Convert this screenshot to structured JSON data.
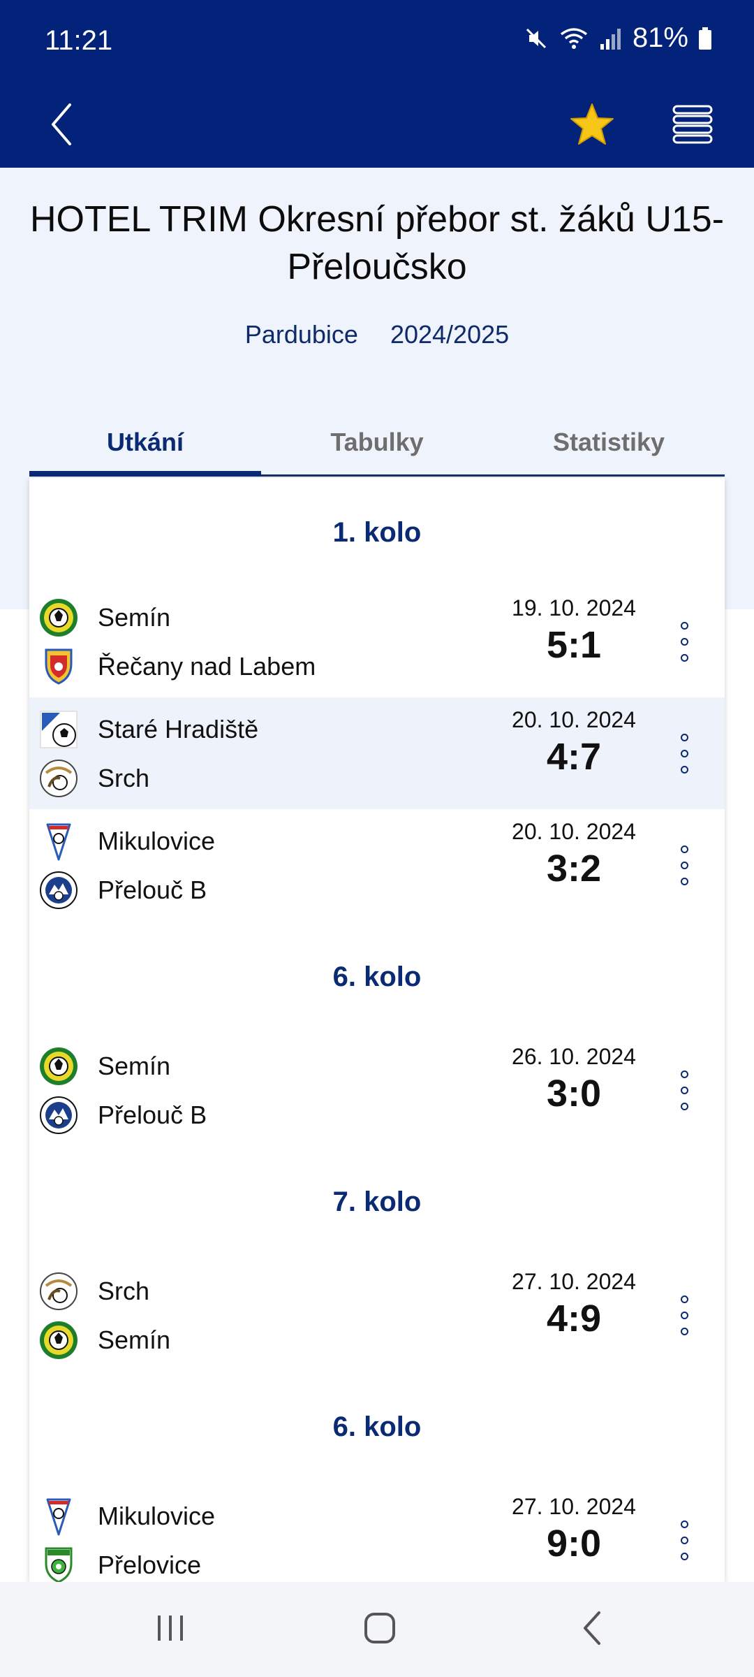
{
  "status_bar": {
    "time": "11:21",
    "battery": "81%",
    "icons": [
      "mute-icon",
      "wifi-icon",
      "signal-icon",
      "battery-icon"
    ]
  },
  "app_bar": {
    "icons": [
      "back-arrow-icon",
      "star-icon",
      "menu-icon"
    ],
    "star_color": "#f5c518"
  },
  "competition": {
    "title": "HOTEL TRIM Okresní přebor st. žáků U15-Přeloučsko",
    "region": "Pardubice",
    "season": "2024/2025"
  },
  "tabs": [
    {
      "label": "Utkání",
      "active": true
    },
    {
      "label": "Tabulky",
      "active": false
    },
    {
      "label": "Statistiky",
      "active": false
    }
  ],
  "rounds": [
    {
      "label": "1. kolo"
    },
    {
      "label": "6. kolo"
    },
    {
      "label": "7. kolo"
    },
    {
      "label": "6. kolo"
    }
  ],
  "matches": [
    {
      "home": "Semín",
      "away": "Řečany nad Labem",
      "date": "19. 10. 2024",
      "score": "5:1",
      "home_logo": "semin-logo-icon",
      "away_logo": "recany-logo-icon"
    },
    {
      "home": "Staré Hradiště",
      "away": "Srch",
      "date": "20. 10. 2024",
      "score": "4:7",
      "home_logo": "stare-hradiste-logo-icon",
      "away_logo": "srch-logo-icon",
      "highlighted": true
    },
    {
      "home": "Mikulovice",
      "away": "Přelouč B",
      "date": "20. 10. 2024",
      "score": "3:2",
      "home_logo": "mikulovice-logo-icon",
      "away_logo": "prelouc-logo-icon"
    },
    {
      "home": "Semín",
      "away": "Přelouč B",
      "date": "26. 10. 2024",
      "score": "3:0",
      "home_logo": "semin-logo-icon",
      "away_logo": "prelouc-logo-icon"
    },
    {
      "home": "Srch",
      "away": "Semín",
      "date": "27. 10. 2024",
      "score": "4:9",
      "home_logo": "srch-logo-icon",
      "away_logo": "semin-logo-icon"
    },
    {
      "home": "Mikulovice",
      "away": "Přelovice",
      "date": "27. 10. 2024",
      "score": "9:0",
      "home_logo": "mikulovice-logo-icon",
      "away_logo": "prelovice-logo-icon"
    }
  ],
  "colors": {
    "primary": "#03237a",
    "accent_text": "#0b2a74",
    "hero_bg": "#eff3fb",
    "highlight_row": "#eef3fb"
  },
  "nav_bar": {
    "icons": [
      "recent-apps-icon",
      "home-icon",
      "system-back-icon"
    ]
  }
}
